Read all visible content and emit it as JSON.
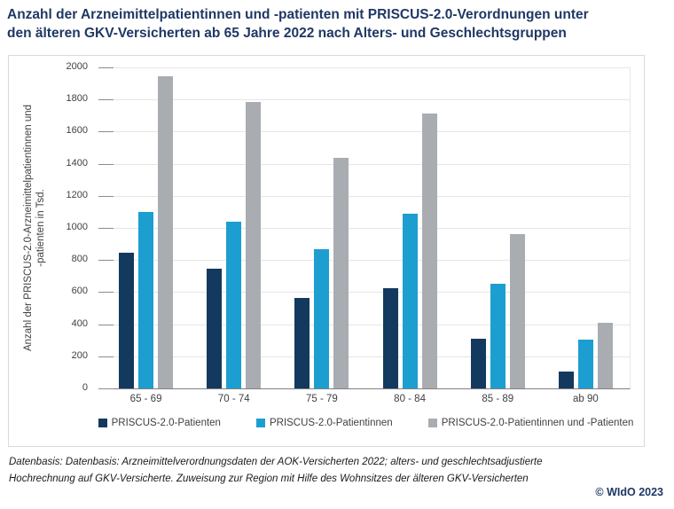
{
  "title": {
    "line1": "Anzahl der Arzneimittelpatientinnen und -patienten mit PRISCUS-2.0-Verordnungen unter",
    "line2": "den älteren GKV-Versicherten ab 65 Jahre 2022 nach Alters- und Geschlechtsgruppen"
  },
  "chart_data": {
    "type": "bar",
    "categories": [
      "65 - 69",
      "70 - 74",
      "75 - 79",
      "80 - 84",
      "85 - 89",
      "ab 90"
    ],
    "series": [
      {
        "name": "PRISCUS-2.0-Patienten",
        "color": "#14395E",
        "values": [
          845,
          745,
          565,
          625,
          310,
          105
        ]
      },
      {
        "name": "PRISCUS-2.0-Patientinnen",
        "color": "#1C9FD0",
        "values": [
          1100,
          1040,
          870,
          1090,
          650,
          305
        ]
      },
      {
        "name": "PRISCUS-2.0-Patientinnen und -Patienten",
        "color": "#A9ADB2",
        "values": [
          1945,
          1785,
          1435,
          1715,
          960,
          410
        ]
      }
    ],
    "ylabel_line1": "Anzahl der PRISCUS-2.0-Arzneimittelpatientinnen und",
    "ylabel_line2": "-patienten in Tsd.",
    "xlabel": "",
    "ylim": [
      0,
      2000
    ],
    "ytick_step": 200,
    "grid": true,
    "legend_position": "bottom"
  },
  "footer": {
    "line1": "Datenbasis: Datenbasis: Arzneimittelverordnungsdaten der AOK-Versicherten 2022; alters- und geschlechtsadjustierte",
    "line2": "Hochrechnung auf  GKV-Versicherte. Zuweisung zur Region mit Hilfe des Wohnsitzes der älteren GKV-Versicherten",
    "copyright": "© WIdO 2023"
  }
}
